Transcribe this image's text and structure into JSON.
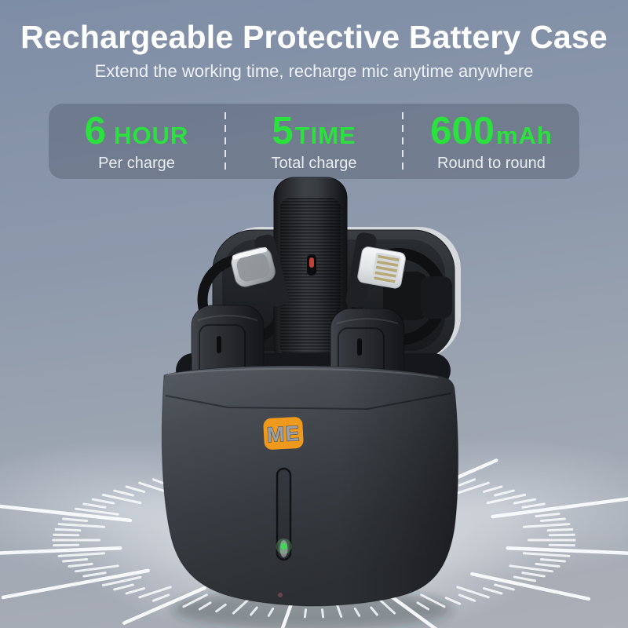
{
  "header": {
    "title": "Rechargeable Protective Battery Case",
    "subtitle": "Extend the working time, recharge mic anytime anywhere"
  },
  "stats": {
    "items": [
      {
        "value": "6",
        "unit": "HOUR",
        "label": "Per charge"
      },
      {
        "value": "5",
        "unit": "TIME",
        "label": "Total charge"
      },
      {
        "value": "600",
        "unit": "mAh",
        "label": "Round to round"
      }
    ]
  },
  "product": {
    "brand_badge": "ME"
  },
  "colors": {
    "accent_green": "#2AE13D",
    "brand_orange": "#EF9A1D",
    "led_green": "#3FD754",
    "indicator_red": "#C0413A",
    "background_top": "#7E8DA6",
    "background_bottom": "#ABAFB7"
  }
}
